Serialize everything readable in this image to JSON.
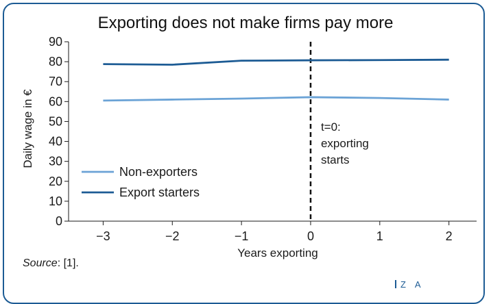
{
  "title": "Exporting does not make firms pay more",
  "source_label": "Source",
  "source_rest": ": [1].",
  "logo_text": "Z A",
  "colors": {
    "frame": "#1c5b94",
    "non_exporters": "#6ba3d6",
    "export_starters": "#1c5b94"
  },
  "chart_data": {
    "type": "line",
    "title": "Exporting does not make firms pay more",
    "xlabel": "Years exporting",
    "ylabel": "Daily wage in €",
    "x": [
      -3,
      -2,
      -1,
      0,
      1,
      2
    ],
    "x_tick_labels": [
      "−3",
      "−2",
      "−1",
      "0",
      "1",
      "2"
    ],
    "xlim": [
      -3.5,
      2.4
    ],
    "ylim": [
      0,
      90
    ],
    "y_ticks": [
      0,
      10,
      20,
      30,
      40,
      50,
      60,
      70,
      80,
      90
    ],
    "series": [
      {
        "name": "Non-exporters",
        "values": [
          60.5,
          61,
          61.5,
          62.2,
          61.8,
          61
        ]
      },
      {
        "name": "Export starters",
        "values": [
          78.8,
          78.5,
          80.5,
          80.7,
          80.8,
          81
        ]
      }
    ],
    "legend": [
      "Non-exporters",
      "Export starters"
    ],
    "legend_position": "lower-left",
    "vertical_marker": {
      "x": 0,
      "style": "dashed",
      "label_lines": [
        "t=0:",
        "exporting",
        "starts"
      ]
    },
    "grid": false
  }
}
